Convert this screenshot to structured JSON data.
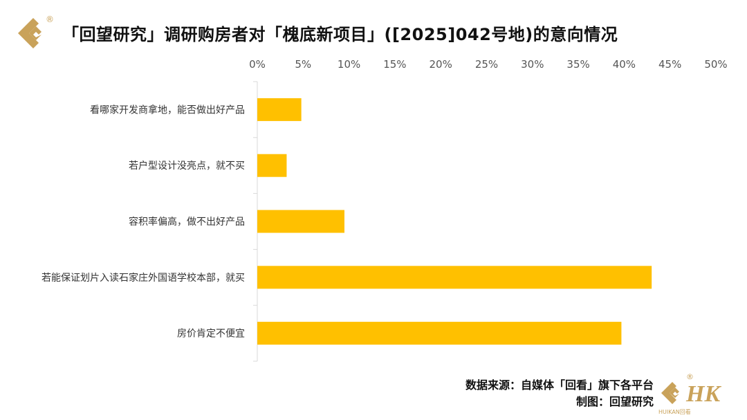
{
  "title": "「回望研究」调研购房者对「槐底新项目」([2025]042号地)的意向情况",
  "footer": {
    "source": "数据来源：自媒体「回看」旗下各平台",
    "credit": "制图：回望研究"
  },
  "logo": {
    "registered": "®",
    "brand_text": "HUIKAN回看"
  },
  "colors": {
    "bar": "#FFC000",
    "axis": "#D9D9D9",
    "logo_gold": "#C9A25A"
  },
  "chart_data": {
    "type": "bar",
    "orientation": "horizontal",
    "categories": [
      "看哪家开发商拿地，能否做出好产品",
      "若户型设计没亮点，就不买",
      "容积率偏高，做不出好产品",
      "若能保证划片入读石家庄外国语学校本部，就买",
      "房价肯定不便宜"
    ],
    "values": [
      4.8,
      3.2,
      9.5,
      43.0,
      39.7
    ],
    "xlim": [
      0,
      50
    ],
    "ticks": [
      "0%",
      "5%",
      "10%",
      "15%",
      "20%",
      "25%",
      "30%",
      "35%",
      "40%",
      "45%",
      "50%"
    ],
    "axis_position": "top",
    "grid": false,
    "legend": "none"
  }
}
